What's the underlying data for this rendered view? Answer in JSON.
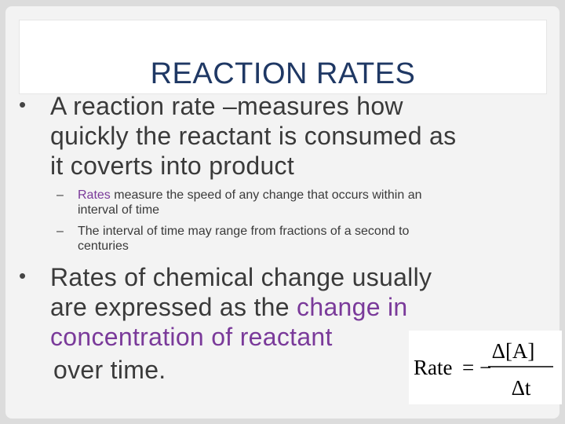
{
  "slide": {
    "title": "REACTION RATES",
    "bullet_symbol": "•",
    "dash_symbol": "–",
    "bullet1": {
      "line1": "A reaction rate –measures how",
      "line2": "quickly the reactant is consumed as",
      "line3": "it coverts into product"
    },
    "sub1": {
      "highlight": "Rates",
      "line1_rest": " measure the speed of any change that occurs within an",
      "line2": "interval of time"
    },
    "sub2": {
      "line1": "The interval of time may range from fractions of a second to",
      "line2": "centuries"
    },
    "bullet2": {
      "line1": "Rates of chemical change usually",
      "line2_start": "are expressed as the ",
      "line2_highlight": "change in",
      "line3": "concentration of reactant",
      "line4": "over time."
    },
    "formula": {
      "lhs": "Rate",
      "equals": "= −",
      "numerator": "Δ[A]",
      "denominator": "Δt"
    },
    "colors": {
      "title": "#1f3864",
      "text": "#3a3a3a",
      "highlight": "#7a3a9a"
    }
  }
}
